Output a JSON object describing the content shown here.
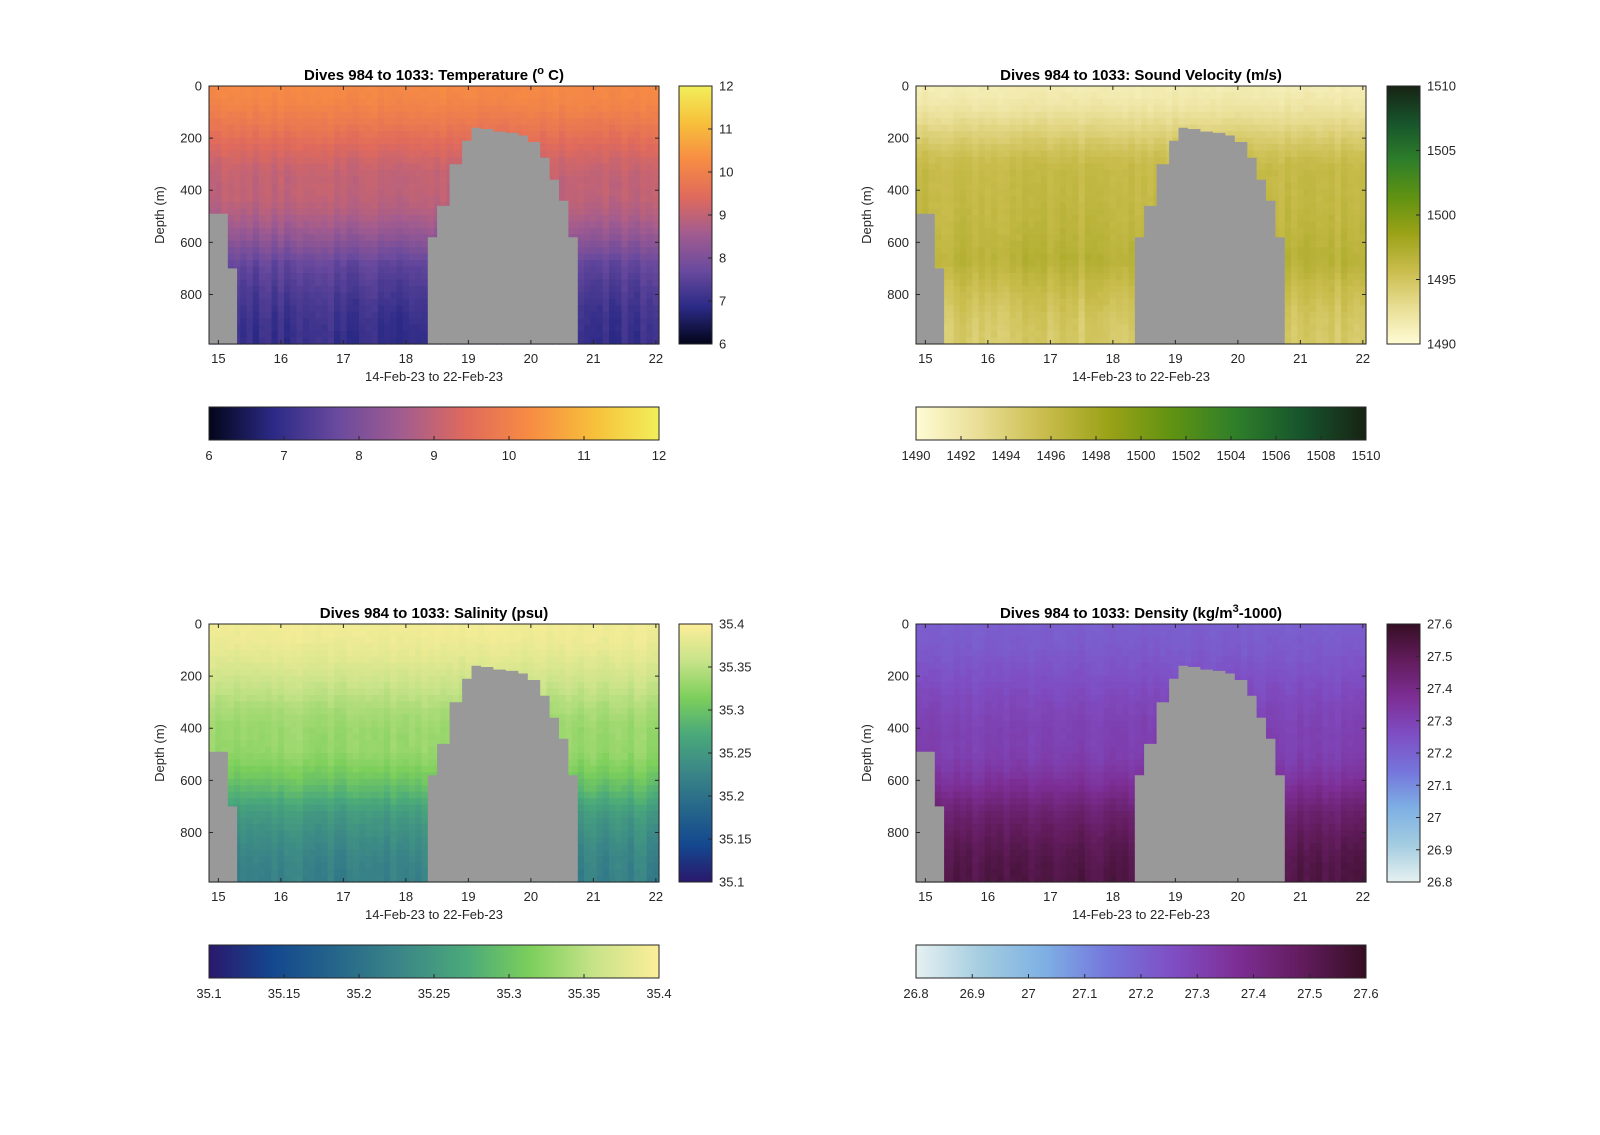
{
  "figure": {
    "xaxis_ticks": [
      "15",
      "16",
      "17",
      "18",
      "19",
      "20",
      "21",
      "22"
    ],
    "xlabel": "14-Feb-23 to 22-Feb-23",
    "ylabel": "Depth (m)",
    "yaxis_ticks": [
      "0",
      "200",
      "400",
      "600",
      "800"
    ],
    "mask_color": "#999999"
  },
  "chart_data": [
    {
      "type": "heatmap",
      "title": "Dives 984 to 1033: Temperature (",
      "title_superscript": "o",
      "title_suffix": " C)",
      "xlabel": "14-Feb-23 to 22-Feb-23",
      "ylabel": "Depth (m)",
      "xlim": [
        14.85,
        22.05
      ],
      "ylim": [
        0,
        990
      ],
      "y_reversed": true,
      "colormap": "thermal",
      "colors": [
        "#03051a",
        "#2b2a86",
        "#6a4a9e",
        "#a25c8f",
        "#e06a5c",
        "#f78c43",
        "#f7c03b",
        "#f1ef5a"
      ],
      "clim": [
        6,
        12
      ],
      "colorbar_vertical_ticks": [
        "6",
        "7",
        "8",
        "9",
        "10",
        "11",
        "12"
      ],
      "colorbar_horizontal_ticks": [
        "6",
        "7",
        "8",
        "9",
        "10",
        "11",
        "12"
      ],
      "surface_value": 10.2,
      "deep_value": 8.2,
      "bottom_value": 7.0,
      "transition_depth": 380
    },
    {
      "type": "heatmap",
      "title": "Dives 984 to 1033: Sound Velocity (m/s)",
      "xlabel": "14-Feb-23 to 22-Feb-23",
      "ylabel": "Depth (m)",
      "xlim": [
        14.85,
        22.05
      ],
      "ylim": [
        0,
        990
      ],
      "y_reversed": true,
      "colormap": "speed",
      "colors": [
        "#fffcd5",
        "#e8dd93",
        "#c9bc4c",
        "#9aa217",
        "#5f9212",
        "#2d7e2a",
        "#17542c",
        "#172313"
      ],
      "clim": [
        1490,
        1510
      ],
      "colorbar_vertical_ticks": [
        "1490",
        "1495",
        "1500",
        "1505",
        "1510"
      ],
      "colorbar_horizontal_ticks": [
        "1490",
        "1492",
        "1494",
        "1496",
        "1498",
        "1500",
        "1502",
        "1504",
        "1506",
        "1508",
        "1510"
      ],
      "surface_value": 1491.5,
      "deep_value": 1499.0,
      "bottom_value": 1494.5,
      "transition_depth": 350
    },
    {
      "type": "heatmap",
      "title": "Dives 984 to 1033: Salinity (psu)",
      "xlabel": "14-Feb-23 to 22-Feb-23",
      "ylabel": "Depth (m)",
      "xlim": [
        14.85,
        22.05
      ],
      "ylim": [
        0,
        990
      ],
      "y_reversed": true,
      "colormap": "haline",
      "colors": [
        "#2a186c",
        "#14488f",
        "#26678a",
        "#3b8787",
        "#4aa97a",
        "#7ccf5b",
        "#c8e389",
        "#fdee99"
      ],
      "clim": [
        35.1,
        35.4
      ],
      "colorbar_vertical_ticks": [
        "35.1",
        "35.15",
        "35.2",
        "35.25",
        "35.3",
        "35.35",
        "35.4"
      ],
      "colorbar_horizontal_ticks": [
        "35.1",
        "35.15",
        "35.2",
        "35.25",
        "35.3",
        "35.35",
        "35.4"
      ],
      "surface_value": 35.39,
      "deep_value": 35.29,
      "bottom_value": 35.22,
      "transition_depth": 450
    },
    {
      "type": "heatmap",
      "title": "Dives 984 to 1033: Density (kg/m",
      "title_superscript": "3",
      "title_suffix": "-1000)",
      "xlabel": "14-Feb-23 to 22-Feb-23",
      "ylabel": "Depth (m)",
      "xlim": [
        14.85,
        22.05
      ],
      "ylim": [
        0,
        990
      ],
      "y_reversed": true,
      "colormap": "dense",
      "colors": [
        "#e6f1f1",
        "#a4cde0",
        "#7eb0e4",
        "#7575dc",
        "#7f4ec4",
        "#7d2e95",
        "#621c5d",
        "#360e24"
      ],
      "clim": [
        26.8,
        27.6
      ],
      "colorbar_vertical_ticks": [
        "26.8",
        "26.9",
        "27",
        "27.1",
        "27.2",
        "27.3",
        "27.4",
        "27.5",
        "27.6"
      ],
      "colorbar_horizontal_ticks": [
        "26.8",
        "26.9",
        "27",
        "27.1",
        "27.2",
        "27.3",
        "27.4",
        "27.5",
        "27.6"
      ],
      "surface_value": 27.21,
      "deep_value": 27.36,
      "bottom_value": 27.53,
      "transition_depth": 450
    }
  ],
  "bathymetry_mask": {
    "note_days": [
      14.85,
      15.15,
      15.3,
      18.2,
      18.35,
      18.5,
      18.7,
      18.9,
      19.05,
      19.2,
      19.4,
      19.6,
      19.8,
      19.95,
      20.15,
      20.3,
      20.45,
      20.6,
      20.75,
      22.05
    ],
    "seafloor_depth_m": [
      490,
      700,
      990,
      990,
      580,
      460,
      300,
      210,
      160,
      165,
      175,
      180,
      190,
      215,
      275,
      360,
      440,
      580,
      990,
      990
    ]
  }
}
